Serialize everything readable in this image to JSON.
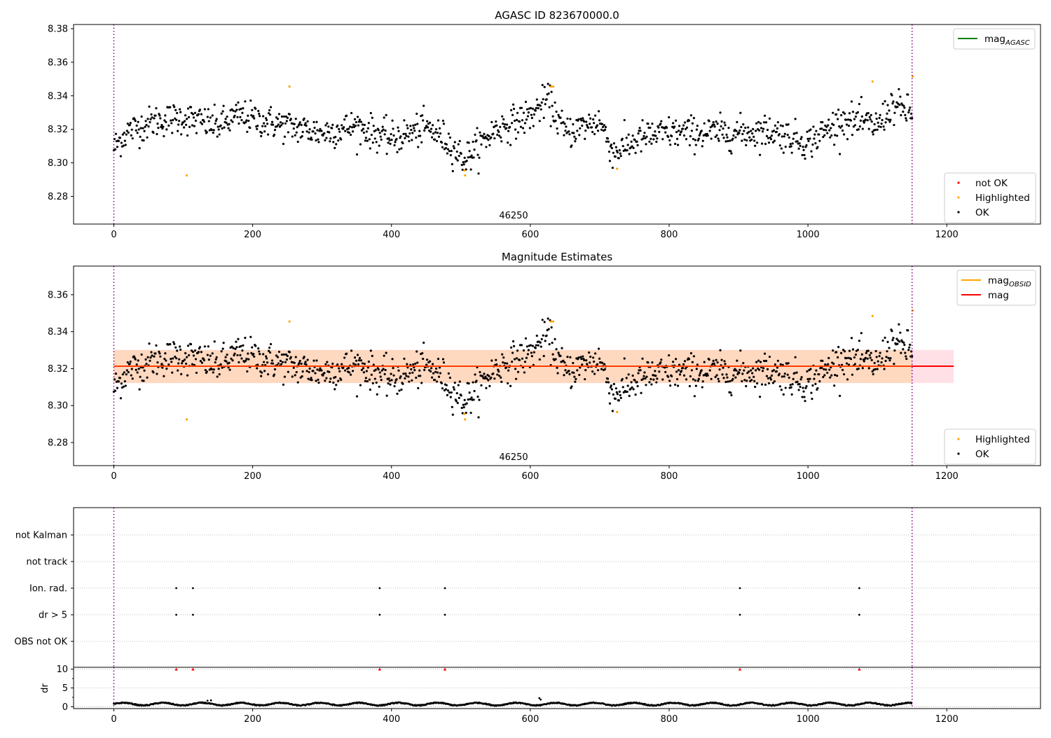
{
  "figure": {
    "plot1_title": "AGASC ID 823670000.0",
    "plot2_title": "Magnitude Estimates",
    "obsid_label": "46250"
  },
  "chart_data": [
    {
      "type": "scatter",
      "title": "AGASC ID 823670000.0",
      "xlabel": "",
      "ylabel": "",
      "xlim": [
        -58,
        1335
      ],
      "ylim": [
        8.2635,
        8.3825
      ],
      "x_ticks": [
        "0",
        "200",
        "400",
        "600",
        "800",
        "1000",
        "1200"
      ],
      "y_ticks": [
        "8.28",
        "8.30",
        "8.32",
        "8.34",
        "8.36",
        "8.38"
      ],
      "vlines": [
        0,
        1150
      ],
      "annotation": "46250",
      "legends": [
        {
          "placement": "top-right",
          "entries": [
            {
              "label": "mag",
              "subscript": "AGASC",
              "color": "#008000",
              "marker": "line"
            }
          ]
        },
        {
          "placement": "bottom-right",
          "entries": [
            {
              "label": "not OK",
              "color": "#ff0000",
              "marker": "dot"
            },
            {
              "label": "Highlighted",
              "color": "#ffa500",
              "marker": "dot"
            },
            {
              "label": "OK",
              "color": "#000000",
              "marker": "dot"
            }
          ]
        }
      ],
      "series": [
        {
          "name": "OK",
          "color": "#000000",
          "n": 1150,
          "x_range": [
            0,
            1150
          ],
          "trend": [
            [
              0,
              8.309
            ],
            [
              20,
              8.319
            ],
            [
              60,
              8.325
            ],
            [
              100,
              8.327
            ],
            [
              150,
              8.322
            ],
            [
              180,
              8.328
            ],
            [
              250,
              8.322
            ],
            [
              300,
              8.318
            ],
            [
              350,
              8.322
            ],
            [
              400,
              8.314
            ],
            [
              450,
              8.321
            ],
            [
              475,
              8.315
            ],
            [
              505,
              8.302
            ],
            [
              550,
              8.32
            ],
            [
              600,
              8.328
            ],
            [
              625,
              8.338
            ],
            [
              650,
              8.318
            ],
            [
              700,
              8.325
            ],
            [
              720,
              8.306
            ],
            [
              760,
              8.315
            ],
            [
              800,
              8.318
            ],
            [
              850,
              8.318
            ],
            [
              900,
              8.318
            ],
            [
              950,
              8.319
            ],
            [
              1000,
              8.312
            ],
            [
              1050,
              8.326
            ],
            [
              1100,
              8.322
            ],
            [
              1120,
              8.334
            ],
            [
              1150,
              8.33
            ]
          ],
          "scatter_sd": 0.0065
        },
        {
          "name": "Highlighted",
          "color": "#ffa500",
          "x": [
            105,
            253,
            505,
            506,
            630,
            633,
            725,
            1093,
            1151
          ],
          "y": [
            8.2925,
            8.3455,
            8.2955,
            8.2925,
            8.3455,
            8.3455,
            8.2965,
            8.3485,
            8.3515
          ]
        }
      ]
    },
    {
      "type": "scatter",
      "title": "Magnitude Estimates",
      "xlim": [
        -58,
        1335
      ],
      "ylim": [
        8.2675,
        8.3755
      ],
      "x_ticks": [
        "0",
        "200",
        "400",
        "600",
        "800",
        "1000",
        "1200"
      ],
      "y_ticks": [
        "8.28",
        "8.30",
        "8.32",
        "8.34",
        "8.36"
      ],
      "vlines": [
        0,
        1150
      ],
      "annotation": "46250",
      "band_outer": {
        "x": [
          0,
          1210
        ],
        "y": [
          8.3122,
          8.3301
        ],
        "color": "#ffe0e6"
      },
      "band_inner": {
        "x": [
          0,
          1150
        ],
        "y": [
          8.3122,
          8.3301
        ],
        "color": "#ffd8c0"
      },
      "hlines": [
        {
          "name": "mag",
          "y": 8.3213,
          "x": [
            0,
            1210
          ],
          "color": "#ff0000"
        }
      ],
      "legends": [
        {
          "placement": "top-right",
          "entries": [
            {
              "label": "mag",
              "subscript": "OBSID",
              "color": "#ffa500",
              "marker": "line"
            },
            {
              "label": "mag",
              "color": "#ff0000",
              "marker": "line"
            }
          ]
        },
        {
          "placement": "bottom-right",
          "entries": [
            {
              "label": "Highlighted",
              "color": "#ffa500",
              "marker": "dot"
            },
            {
              "label": "OK",
              "color": "#000000",
              "marker": "dot"
            }
          ]
        }
      ]
    },
    {
      "type": "scatter",
      "xlim": [
        -58,
        1335
      ],
      "categories": [
        "OBS not OK",
        "dr > 5",
        "Ion. rad.",
        "not track",
        "not Kalman"
      ],
      "vlines": [
        0,
        1150
      ],
      "flags": {
        "dr > 5": [
          90,
          114,
          383,
          477,
          902,
          1074
        ],
        "Ion. rad.": [
          90,
          114,
          383,
          477,
          902,
          1074
        ]
      }
    },
    {
      "type": "scatter",
      "ylabel": "dr",
      "xlim": [
        -58,
        1335
      ],
      "ylim": [
        -0.5,
        10.5
      ],
      "y_ticks": [
        "0",
        "5",
        "10"
      ],
      "x_ticks": [
        "0",
        "200",
        "400",
        "600",
        "800",
        "1000",
        "1200"
      ],
      "vlines": [
        0,
        1150
      ],
      "clipped_markers": {
        "x": [
          90,
          114,
          383,
          477,
          902,
          1074
        ],
        "y": 10,
        "color": "#ff0000"
      },
      "dr_baseline": 0.7,
      "dr_outliers": [
        [
          613,
          2.3
        ],
        [
          615,
          1.9
        ],
        [
          135,
          1.6
        ],
        [
          140,
          1.7
        ]
      ]
    }
  ]
}
